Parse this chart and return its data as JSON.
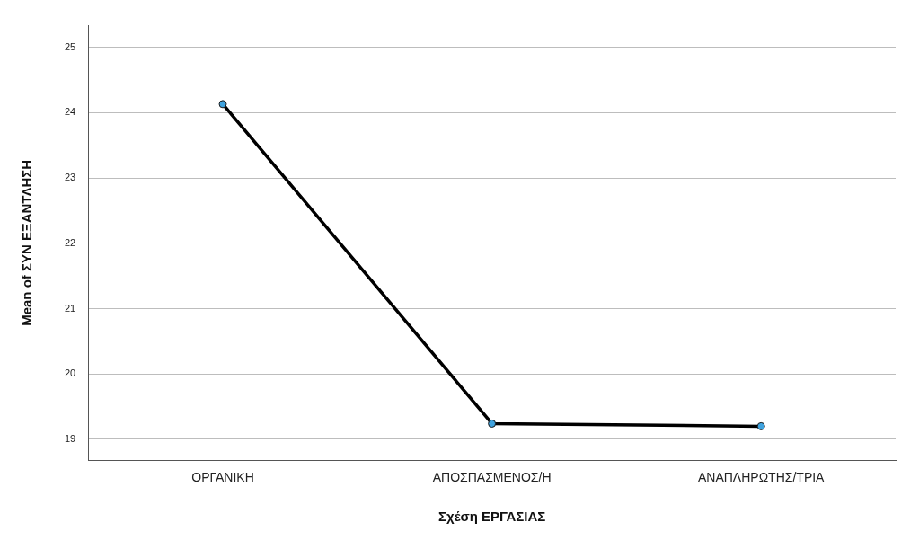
{
  "chart_data": {
    "type": "line",
    "xlabel": "Σχέση ΕΡΓΑΣΙΑΣ",
    "ylabel": "Mean of ΣΥΝ ΕΞΑΝΤΛΗΣΗ",
    "categories": [
      "ΟΡΓΑΝΙΚΗ",
      "ΑΠΟΣΠΑΣΜΕΝΟΣ/Η",
      "ΑΝΑΠΛΗΡΩΤΗΣ/ΤΡΙΑ"
    ],
    "series": [
      {
        "color": "#000000",
        "values": [
          24.13,
          19.24,
          19.2
        ]
      }
    ],
    "ylim": [
      18.68,
      25.33
    ],
    "yticks": [
      19,
      20,
      21,
      22,
      23,
      24,
      25
    ],
    "grid": "y",
    "marker": "circle",
    "line_style": "solid",
    "legend": false
  }
}
